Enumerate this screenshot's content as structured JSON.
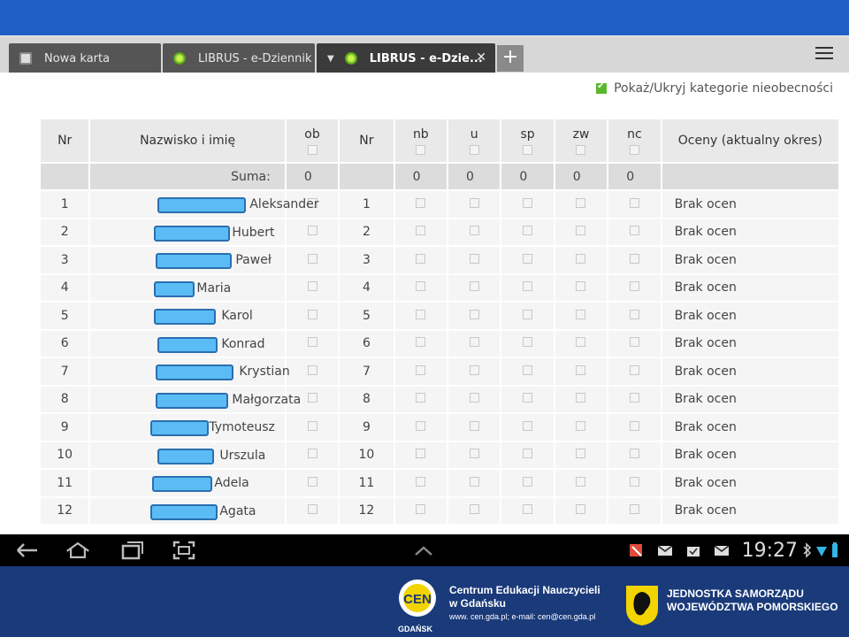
{
  "browser": {
    "tabs": [
      {
        "label": "Nowa karta"
      },
      {
        "label": "LIBRUS - e-Dziennik"
      },
      {
        "label": "LIBRUS - e-Dzie..."
      }
    ],
    "new_tab_symbol": "+",
    "close_symbol": "✕"
  },
  "toggle": {
    "label": "Pokaż/Ukryj kategorie nieobecności",
    "checked": true
  },
  "table": {
    "headers": {
      "nr": "Nr",
      "name": "Nazwisko i imię",
      "ob": "ob",
      "nr2": "Nr",
      "nb": "nb",
      "u": "u",
      "sp": "sp",
      "zw": "zw",
      "nc": "nc",
      "grades": "Oceny (aktualny okres)"
    },
    "sum_row": {
      "label": "Suma:",
      "ob": "0",
      "nb": "0",
      "u": "0",
      "sp": "0",
      "zw": "0",
      "nc": "0"
    },
    "rows": [
      {
        "nr": "1",
        "first_name": "Aleksander",
        "grades": "Brak ocen"
      },
      {
        "nr": "2",
        "first_name": "Hubert",
        "grades": "Brak ocen"
      },
      {
        "nr": "3",
        "first_name": "Paweł",
        "grades": "Brak ocen"
      },
      {
        "nr": "4",
        "first_name": "Maria",
        "grades": "Brak ocen"
      },
      {
        "nr": "5",
        "first_name": "Karol",
        "grades": "Brak ocen"
      },
      {
        "nr": "6",
        "first_name": "Konrad",
        "grades": "Brak ocen"
      },
      {
        "nr": "7",
        "first_name": "Krystian",
        "grades": "Brak ocen"
      },
      {
        "nr": "8",
        "first_name": "Małgorzata",
        "grades": "Brak ocen"
      },
      {
        "nr": "9",
        "first_name": "Tymoteusz",
        "grades": "Brak ocen"
      },
      {
        "nr": "10",
        "first_name": "Urszula",
        "grades": "Brak ocen"
      },
      {
        "nr": "11",
        "first_name": "Adela",
        "grades": "Brak ocen"
      },
      {
        "nr": "12",
        "first_name": "Agata",
        "grades": "Brak ocen"
      }
    ]
  },
  "system_bar": {
    "time": "19:27"
  },
  "footer": {
    "cen_line1": "Centrum Edukacji Nauczycieli",
    "cen_line2": "w Gdańsku",
    "cen_contact": "www. cen.gda.pl; e-mail: cen@cen.gda.pl",
    "cen_city": "GDAŃSK",
    "cen_logo_text": "CEN",
    "region_line1": "JEDNOSTKA SAMORZĄDU",
    "region_line2": "WOJEWÓDZTWA POMORSKIEGO"
  },
  "colors": {
    "top_band": "#1f5fc4",
    "footer": "#1a3a7a",
    "redaction": "#5bbcf5",
    "checkbox_on": "#5ab82e"
  }
}
